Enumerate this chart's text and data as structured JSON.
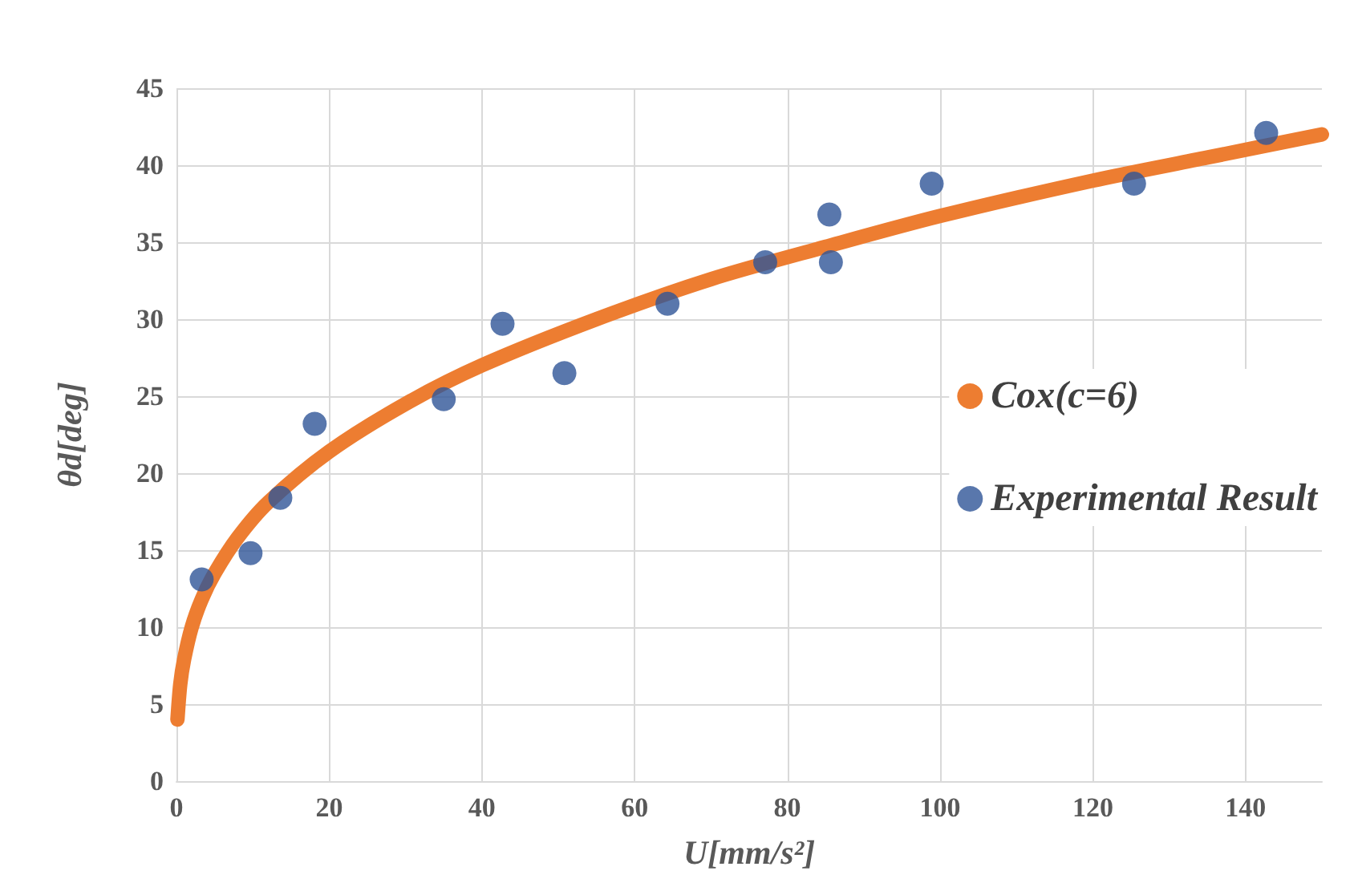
{
  "chart_data": {
    "type": "scatter",
    "xlabel": "U[mm/s²]",
    "ylabel": "θd[deg]",
    "xlim": [
      0,
      150
    ],
    "xticks": [
      0,
      20,
      40,
      60,
      80,
      100,
      120,
      140
    ],
    "ylim": [
      0,
      45
    ],
    "yticks": [
      0,
      5,
      10,
      15,
      20,
      25,
      30,
      35,
      40,
      45
    ],
    "grid": true,
    "legend": "right",
    "series": [
      {
        "name": "Cox(c=6)",
        "type": "line",
        "color": "#ed7d31",
        "marker": "none",
        "x": [
          0.13,
          0.5,
          1,
          2,
          3.3,
          5,
          8,
          12,
          20,
          30,
          40,
          55,
          70,
          85,
          100,
          120,
          135,
          150
        ],
        "values": [
          4,
          6.3,
          7.9,
          10,
          11.8,
          13.5,
          15.8,
          18.1,
          21.4,
          24.5,
          27,
          30,
          32.6,
          34.7,
          36.7,
          39,
          40.5,
          42
        ]
      },
      {
        "name": "Experimental Result",
        "color": "#2f5597",
        "marker": "circle",
        "x": [
          3.3,
          9.7,
          13.6,
          18.1,
          35,
          42.7,
          50.8,
          64.3,
          77.1,
          85.5,
          85.7,
          98.9,
          125.4,
          142.7
        ],
        "values": [
          13.1,
          14.8,
          18.4,
          23.2,
          24.8,
          29.7,
          26.5,
          31.0,
          33.7,
          36.8,
          33.7,
          38.8,
          38.8,
          42.1
        ]
      }
    ]
  }
}
